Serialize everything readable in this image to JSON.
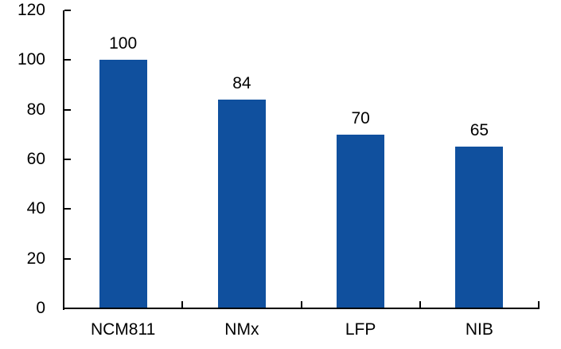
{
  "chart_data": {
    "type": "bar",
    "title": "",
    "xlabel": "",
    "ylabel": "",
    "categories": [
      "NCM811",
      "NMx",
      "LFP",
      "NIB"
    ],
    "values": [
      100,
      84,
      70,
      65
    ],
    "data_labels": [
      "100",
      "84",
      "70",
      "65"
    ],
    "show_data_labels": true,
    "ylim": [
      0,
      120
    ],
    "yticks": [
      0,
      20,
      40,
      60,
      80,
      100,
      120
    ],
    "ytick_labels": [
      "0",
      "20",
      "40",
      "60",
      "80",
      "100",
      "120"
    ],
    "grid": false,
    "legend": false,
    "bar_color": "#10509E",
    "axis_color": "#000000",
    "text_color": "#000000",
    "background_color": "#FFFFFF"
  }
}
